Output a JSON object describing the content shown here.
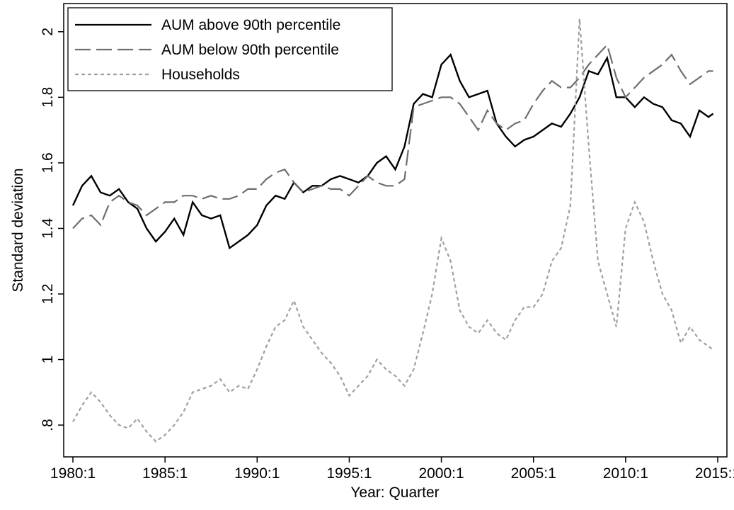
{
  "chart_data": {
    "type": "line",
    "x_label": "Year: Quarter",
    "y_label": "Standard deviation",
    "x": [
      1980,
      1980.5,
      1981,
      1981.5,
      1982,
      1982.5,
      1983,
      1983.5,
      1984,
      1984.5,
      1985,
      1985.5,
      1986,
      1986.5,
      1987,
      1987.5,
      1988,
      1988.5,
      1989,
      1989.5,
      1990,
      1990.5,
      1991,
      1991.5,
      1992,
      1992.5,
      1993,
      1993.5,
      1994,
      1994.5,
      1995,
      1995.5,
      1996,
      1996.5,
      1997,
      1997.5,
      1998,
      1998.5,
      1999,
      1999.5,
      2000,
      2000.5,
      2001,
      2001.5,
      2002,
      2002.5,
      2003,
      2003.5,
      2004,
      2004.5,
      2005,
      2005.5,
      2006,
      2006.5,
      2007,
      2007.5,
      2008,
      2008.5,
      2009,
      2009.5,
      2010,
      2010.5,
      2011,
      2011.5,
      2012,
      2012.5,
      2013,
      2013.5,
      2014,
      2014.5,
      2014.75
    ],
    "series": [
      {
        "name": "AUM above 90th percentile",
        "color": "#000000",
        "linestyle": "solid",
        "values": [
          1.47,
          1.53,
          1.56,
          1.51,
          1.5,
          1.52,
          1.48,
          1.46,
          1.4,
          1.36,
          1.39,
          1.43,
          1.38,
          1.48,
          1.44,
          1.43,
          1.44,
          1.34,
          1.36,
          1.38,
          1.41,
          1.47,
          1.5,
          1.49,
          1.54,
          1.51,
          1.53,
          1.53,
          1.55,
          1.56,
          1.55,
          1.54,
          1.56,
          1.6,
          1.62,
          1.58,
          1.65,
          1.78,
          1.81,
          1.8,
          1.9,
          1.93,
          1.85,
          1.8,
          1.81,
          1.82,
          1.72,
          1.68,
          1.65,
          1.67,
          1.68,
          1.7,
          1.72,
          1.71,
          1.75,
          1.8,
          1.88,
          1.87,
          1.92,
          1.8,
          1.8,
          1.77,
          1.8,
          1.78,
          1.77,
          1.73,
          1.72,
          1.68,
          1.76,
          1.74,
          1.75
        ]
      },
      {
        "name": "AUM below 90th percentile",
        "color": "#6e6e6e",
        "linestyle": "longdash",
        "values": [
          1.4,
          1.43,
          1.44,
          1.41,
          1.48,
          1.5,
          1.48,
          1.47,
          1.44,
          1.46,
          1.48,
          1.48,
          1.5,
          1.5,
          1.49,
          1.5,
          1.49,
          1.49,
          1.5,
          1.52,
          1.52,
          1.55,
          1.57,
          1.58,
          1.54,
          1.51,
          1.52,
          1.53,
          1.52,
          1.52,
          1.5,
          1.53,
          1.56,
          1.54,
          1.53,
          1.53,
          1.55,
          1.77,
          1.78,
          1.79,
          1.8,
          1.8,
          1.78,
          1.74,
          1.7,
          1.76,
          1.72,
          1.7,
          1.72,
          1.73,
          1.78,
          1.82,
          1.85,
          1.83,
          1.83,
          1.86,
          1.9,
          1.93,
          1.96,
          1.86,
          1.8,
          1.83,
          1.86,
          1.88,
          1.9,
          1.93,
          1.88,
          1.84,
          1.86,
          1.88,
          1.88
        ]
      },
      {
        "name": "Households",
        "color": "#a0a0a0",
        "linestyle": "shortdash",
        "values": [
          0.81,
          0.86,
          0.9,
          0.87,
          0.83,
          0.8,
          0.79,
          0.82,
          0.78,
          0.75,
          0.77,
          0.8,
          0.84,
          0.9,
          0.91,
          0.92,
          0.94,
          0.9,
          0.92,
          0.91,
          0.97,
          1.04,
          1.1,
          1.12,
          1.18,
          1.1,
          1.06,
          1.02,
          0.99,
          0.95,
          0.89,
          0.92,
          0.95,
          1.0,
          0.97,
          0.95,
          0.92,
          0.97,
          1.08,
          1.2,
          1.37,
          1.3,
          1.15,
          1.1,
          1.08,
          1.12,
          1.08,
          1.06,
          1.12,
          1.16,
          1.16,
          1.2,
          1.3,
          1.34,
          1.47,
          2.04,
          1.65,
          1.3,
          1.2,
          1.1,
          1.4,
          1.48,
          1.42,
          1.3,
          1.2,
          1.15,
          1.05,
          1.1,
          1.06,
          1.04,
          1.03
        ]
      }
    ],
    "xlim": [
      1979.5,
      2015.5
    ],
    "xticks": [
      {
        "value": 1980,
        "label": "1980:1"
      },
      {
        "value": 1985,
        "label": "1985:1"
      },
      {
        "value": 1990,
        "label": "1990:1"
      },
      {
        "value": 1995,
        "label": "1995:1"
      },
      {
        "value": 2000,
        "label": "2000:1"
      },
      {
        "value": 2005,
        "label": "2005:1"
      },
      {
        "value": 2010,
        "label": "2010:1"
      },
      {
        "value": 2015,
        "label": "2015:1"
      }
    ],
    "ylim": [
      0.703,
      2.086
    ],
    "yticks": [
      {
        "value": 0.8,
        "label": ".8"
      },
      1,
      1.2,
      1.4,
      1.6,
      1.8,
      2
    ],
    "legend": "upper-left",
    "grid": false
  }
}
